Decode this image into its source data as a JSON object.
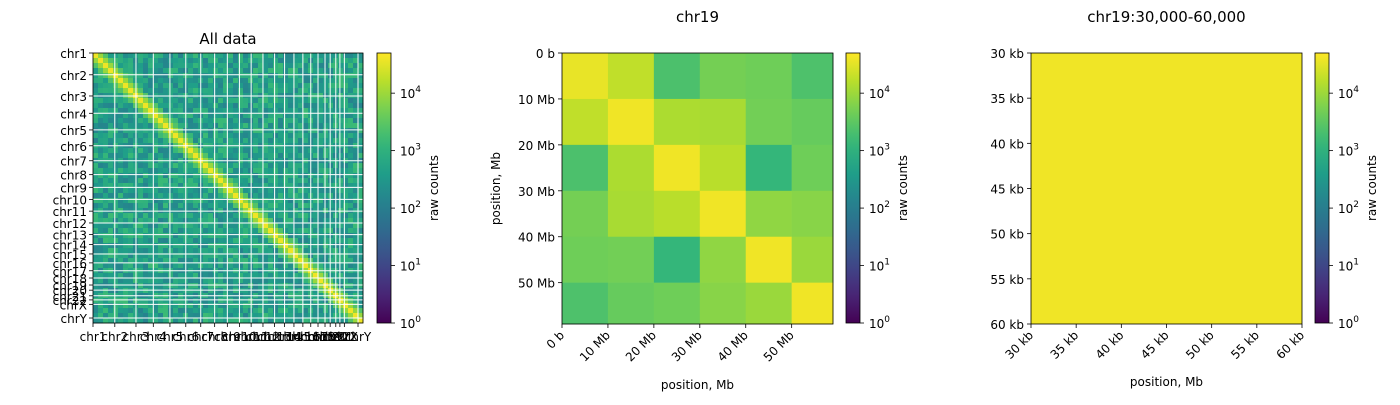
{
  "chart_data": [
    {
      "type": "heatmap",
      "title": "All data",
      "xlabel": "",
      "ylabel": "",
      "scale": "log",
      "colormap": "viridis",
      "color_min": 1,
      "color_max": 50000,
      "grid": false,
      "chromosomes": [
        "chr1",
        "chr2",
        "chr3",
        "chr4",
        "chr5",
        "chr6",
        "chr7",
        "chr8",
        "chr9",
        "chr10",
        "chr11",
        "chr12",
        "chr13",
        "chr14",
        "chr15",
        "chr16",
        "chr17",
        "chr18",
        "chr19",
        "chr20",
        "chr21",
        "chr22",
        "chrX",
        "chrY"
      ],
      "chrom_sizes_mb": [
        249,
        242,
        198,
        190,
        181,
        171,
        159,
        145,
        138,
        134,
        135,
        133,
        114,
        107,
        102,
        90,
        83,
        80,
        59,
        64,
        47,
        51,
        156,
        57
      ],
      "colorbar": {
        "label": "raw counts",
        "ticks": [
          "10^0",
          "10^1",
          "10^2",
          "10^3",
          "10^4"
        ]
      }
    },
    {
      "type": "heatmap",
      "title": "chr19",
      "xlabel": "position, Mb",
      "ylabel": "position, Mb",
      "scale": "log",
      "colormap": "viridis",
      "color_min": 1,
      "color_max": 50000,
      "x_ticks": [
        "0 b",
        "10 Mb",
        "20 Mb",
        "30 Mb",
        "40 Mb",
        "50 Mb"
      ],
      "y_ticks": [
        "0 b",
        "10 Mb",
        "20 Mb",
        "30 Mb",
        "40 Mb",
        "50 Mb"
      ],
      "bin_size_mb": 10,
      "extent_mb": 59,
      "matrix": [
        [
          35000,
          18000,
          2200,
          5000,
          4500,
          2300
        ],
        [
          18000,
          40000,
          13000,
          12000,
          4800,
          3800
        ],
        [
          2200,
          13000,
          40000,
          16000,
          1300,
          4500
        ],
        [
          5000,
          12000,
          16000,
          40000,
          8000,
          7000
        ],
        [
          4500,
          4800,
          1300,
          8000,
          40000,
          9500
        ],
        [
          2300,
          3800,
          4500,
          7000,
          9500,
          40000
        ]
      ],
      "colorbar": {
        "label": "raw counts",
        "ticks": [
          "10^0",
          "10^1",
          "10^2",
          "10^3",
          "10^4"
        ]
      }
    },
    {
      "type": "heatmap",
      "title": "chr19:30,000-60,000",
      "xlabel": "position, Mb",
      "ylabel": "",
      "scale": "log",
      "colormap": "viridis",
      "color_min": 1,
      "color_max": 50000,
      "x_ticks": [
        "30 kb",
        "35 kb",
        "40 kb",
        "45 kb",
        "50 kb",
        "55 kb",
        "60 kb"
      ],
      "y_ticks": [
        "30 kb",
        "35 kb",
        "40 kb",
        "45 kb",
        "50 kb",
        "55 kb",
        "60 kb"
      ],
      "matrix": [
        [
          40000
        ]
      ],
      "colorbar": {
        "label": "raw counts",
        "ticks": [
          "10^0",
          "10^1",
          "10^2",
          "10^3",
          "10^4"
        ]
      }
    }
  ]
}
